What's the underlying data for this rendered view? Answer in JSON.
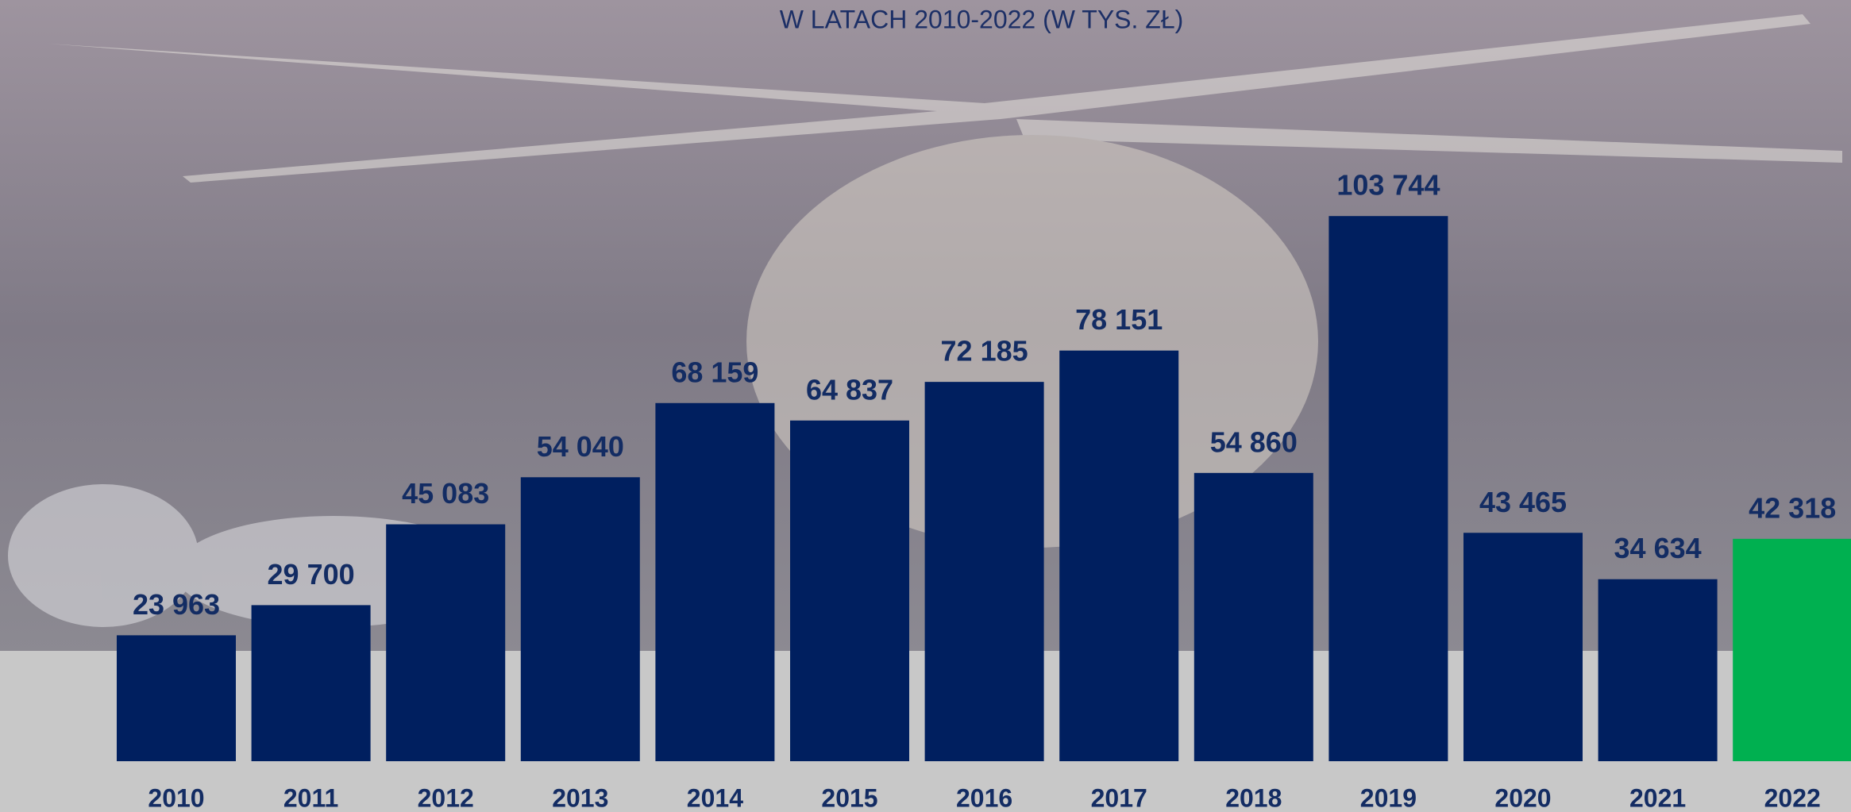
{
  "chart_data": {
    "type": "bar",
    "title": "W LATACH 2010-2022 (W TYS. ZŁ)",
    "categories": [
      "2010",
      "2011",
      "2012",
      "2013",
      "2014",
      "2015",
      "2016",
      "2017",
      "2018",
      "2019",
      "2020",
      "2021",
      "2022"
    ],
    "values": [
      23963,
      29700,
      45083,
      54040,
      68159,
      64837,
      72185,
      78151,
      54860,
      103744,
      43465,
      34634,
      42318
    ],
    "value_labels": [
      "23 963",
      "29 700",
      "45 083",
      "54 040",
      "68 159",
      "64 837",
      "72 185",
      "78 151",
      "54 860",
      "103 744",
      "43 465",
      "34 634",
      "42 318"
    ],
    "colors": [
      "#001f5f",
      "#001f5f",
      "#001f5f",
      "#001f5f",
      "#001f5f",
      "#001f5f",
      "#001f5f",
      "#001f5f",
      "#001f5f",
      "#001f5f",
      "#001f5f",
      "#001f5f",
      "#00b050"
    ]
  }
}
